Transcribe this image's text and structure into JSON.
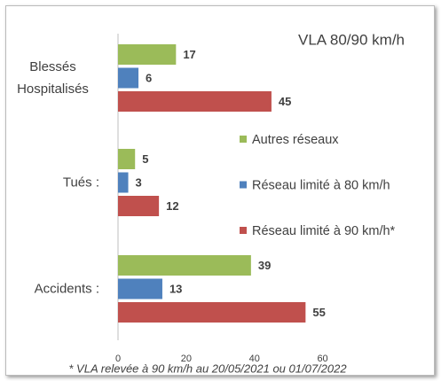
{
  "chart_data": {
    "type": "bar",
    "orientation": "horizontal",
    "title": "VLA 80/90 km/h",
    "footnote": "* VLA relevée à 90 km/h au 20/05/2021 ou 01/07/2022",
    "categories": [
      "Blessés Hospitalisés",
      "Tués :",
      "Accidents :"
    ],
    "series": [
      {
        "name": "Autres réseaux",
        "color": "#9bbb59",
        "values": [
          17,
          5,
          39
        ]
      },
      {
        "name": "Réseau limité à 80 km/h",
        "color": "#4f81bd",
        "values": [
          6,
          3,
          13
        ]
      },
      {
        "name": "Réseau limité à 90 km/h*",
        "color": "#c0504d",
        "values": [
          45,
          12,
          55
        ]
      }
    ],
    "xlim": [
      0,
      70
    ],
    "xticks": [
      0,
      20,
      40,
      60
    ],
    "grid": false
  }
}
